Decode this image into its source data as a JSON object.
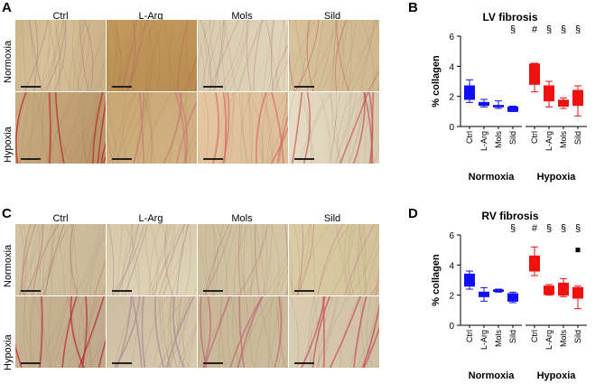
{
  "panels": {
    "A": {
      "letter": "A",
      "cols": [
        "Ctrl",
        "L-Arg",
        "Mols",
        "Sild"
      ],
      "rows": [
        "Normoxia",
        "Hypoxia"
      ]
    },
    "B": {
      "letter": "B"
    },
    "C": {
      "letter": "C",
      "cols": [
        "Ctrl",
        "L-Arg",
        "Mols",
        "Sild"
      ],
      "rows": [
        "Normoxia",
        "Hypoxia"
      ]
    },
    "D": {
      "letter": "D"
    }
  },
  "colors": {
    "normoxia": "#1010f0",
    "hypoxia": "#f01010"
  },
  "chart_data": [
    {
      "type": "box",
      "title": "LV fibrosis",
      "ylabel": "% collagen",
      "ylim": [
        0,
        6
      ],
      "yticks": [
        0,
        2,
        4,
        6
      ],
      "categories": [
        "Ctrl",
        "L-Arg",
        "Mols",
        "Sild",
        "Ctrl",
        "L-Arg",
        "Mols",
        "Sild"
      ],
      "groups": [
        "Normoxia",
        "Hypoxia"
      ],
      "annotations": [
        "",
        "",
        "",
        "§",
        "#",
        "§",
        "§",
        "§"
      ],
      "boxes": [
        {
          "min": 1.6,
          "q1": 1.8,
          "median": 2.3,
          "q3": 2.7,
          "max": 3.1
        },
        {
          "min": 1.3,
          "q1": 1.4,
          "median": 1.55,
          "q3": 1.6,
          "max": 1.8
        },
        {
          "min": 1.2,
          "q1": 1.3,
          "median": 1.35,
          "q3": 1.4,
          "max": 1.7
        },
        {
          "min": 1.0,
          "q1": 1.0,
          "median": 1.15,
          "q3": 1.3,
          "max": 1.35
        },
        {
          "min": 2.3,
          "q1": 2.8,
          "median": 3.5,
          "q3": 4.15,
          "max": 4.2
        },
        {
          "min": 1.3,
          "q1": 1.7,
          "median": 2.2,
          "q3": 2.7,
          "max": 3.0
        },
        {
          "min": 1.2,
          "q1": 1.35,
          "median": 1.5,
          "q3": 1.75,
          "max": 1.9
        },
        {
          "min": 0.7,
          "q1": 1.4,
          "median": 1.8,
          "q3": 2.4,
          "max": 2.7
        }
      ],
      "outliers": []
    },
    {
      "type": "box",
      "title": "RV fibrosis",
      "ylabel": "% collagen",
      "ylim": [
        0,
        6
      ],
      "yticks": [
        0,
        2,
        4,
        6
      ],
      "categories": [
        "Ctrl",
        "L-Arg",
        "Mols",
        "Sild",
        "Ctrl",
        "L-Arg",
        "Mols",
        "Sild"
      ],
      "groups": [
        "Normoxia",
        "Hypoxia"
      ],
      "annotations": [
        "",
        "",
        "",
        "§",
        "#",
        "§",
        "§",
        "§"
      ],
      "boxes": [
        {
          "min": 2.4,
          "q1": 2.6,
          "median": 3.1,
          "q3": 3.4,
          "max": 3.6
        },
        {
          "min": 1.6,
          "q1": 1.9,
          "median": 2.1,
          "q3": 2.2,
          "max": 2.5
        },
        {
          "min": 2.2,
          "q1": 2.25,
          "median": 2.3,
          "q3": 2.35,
          "max": 2.4
        },
        {
          "min": 1.5,
          "q1": 1.6,
          "median": 1.9,
          "q3": 2.1,
          "max": 2.2
        },
        {
          "min": 3.3,
          "q1": 3.6,
          "median": 4.2,
          "q3": 4.6,
          "max": 5.2
        },
        {
          "min": 2.0,
          "q1": 2.05,
          "median": 2.4,
          "q3": 2.6,
          "max": 2.7
        },
        {
          "min": 1.9,
          "q1": 2.0,
          "median": 2.5,
          "q3": 2.8,
          "max": 3.1
        },
        {
          "min": 1.1,
          "q1": 1.8,
          "median": 2.0,
          "q3": 2.5,
          "max": 2.6
        }
      ],
      "outliers": [
        {
          "index": 7,
          "value": 5.0
        }
      ]
    }
  ]
}
